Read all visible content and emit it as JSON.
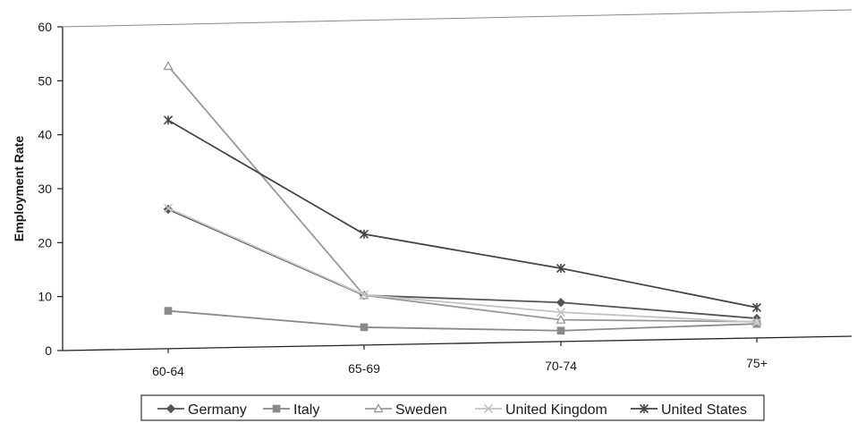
{
  "chart_data": {
    "type": "line",
    "categories": [
      "60-64",
      "65-69",
      "70-74",
      "75+"
    ],
    "ylabel": "Employment Rate",
    "xlabel": "",
    "ylim": [
      0,
      60
    ],
    "yticks": [
      "0",
      "10",
      "20",
      "30",
      "40",
      "50",
      "60"
    ],
    "grid": false,
    "legend_position": "bottom",
    "series": [
      {
        "name": "Germany",
        "values": [
          25.8,
          9.2,
          7.2,
          3.6
        ],
        "marker": "diamond",
        "color": "#555555"
      },
      {
        "name": "Italy",
        "values": [
          7.0,
          3.3,
          2.0,
          2.6
        ],
        "marker": "square",
        "color": "#8a8a8a"
      },
      {
        "name": "Sweden",
        "values": [
          52.3,
          9.2,
          4.0,
          3.0
        ],
        "marker": "triangle",
        "color": "#999999"
      },
      {
        "name": "United Kingdom",
        "values": [
          26.0,
          9.3,
          5.4,
          2.9
        ],
        "marker": "x",
        "color": "#c4c4c4"
      },
      {
        "name": "United States",
        "values": [
          42.3,
          20.5,
          13.5,
          5.6
        ],
        "marker": "star",
        "color": "#444444"
      }
    ]
  }
}
